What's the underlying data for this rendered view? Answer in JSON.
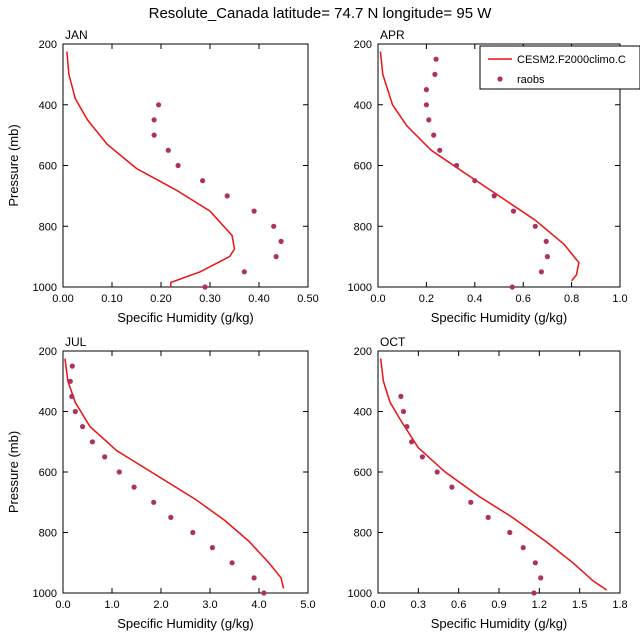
{
  "figure": {
    "title": "Resolute_Canada  latitude= 74.7 N longitude= 95 W"
  },
  "legend": {
    "model_label": "CESM2.F2000climo.C",
    "obs_label": "raobs",
    "model_color": "#ee1111",
    "obs_color": "#b03060",
    "placement": "top-right of APR panel"
  },
  "chart_data": [
    {
      "panel": "JAN",
      "type": "line",
      "xlabel": "Specific Humidity (g/kg)",
      "ylabel": "Pressure (mb)",
      "xlim": [
        0,
        0.5
      ],
      "xticks": [
        "0.00",
        "0.10",
        "0.20",
        "0.30",
        "0.40",
        "0.50"
      ],
      "ylim": [
        1000,
        200
      ],
      "yticks": [
        "200",
        "400",
        "600",
        "800",
        "1000"
      ],
      "series": [
        {
          "name": "CESM2.F2000climo.C",
          "kind": "line",
          "points": [
            [
              0.008,
              225
            ],
            [
              0.012,
              300
            ],
            [
              0.025,
              380
            ],
            [
              0.05,
              450
            ],
            [
              0.09,
              530
            ],
            [
              0.15,
              610
            ],
            [
              0.23,
              680
            ],
            [
              0.3,
              750
            ],
            [
              0.345,
              830
            ],
            [
              0.35,
              875
            ],
            [
              0.34,
              900
            ],
            [
              0.28,
              950
            ],
            [
              0.22,
              985
            ],
            [
              0.22,
              1000
            ]
          ]
        },
        {
          "name": "raobs",
          "kind": "points",
          "points": [
            [
              0.195,
              400
            ],
            [
              0.186,
              450
            ],
            [
              0.186,
              500
            ],
            [
              0.215,
              550
            ],
            [
              0.235,
              600
            ],
            [
              0.285,
              650
            ],
            [
              0.335,
              700
            ],
            [
              0.39,
              750
            ],
            [
              0.43,
              800
            ],
            [
              0.445,
              850
            ],
            [
              0.435,
              900
            ],
            [
              0.37,
              950
            ],
            [
              0.29,
              1000
            ]
          ]
        }
      ]
    },
    {
      "panel": "APR",
      "type": "line",
      "xlabel": "Specific Humidity (g/kg)",
      "ylabel": "",
      "xlim": [
        0,
        1.0
      ],
      "xticks": [
        "0.0",
        "0.2",
        "0.4",
        "0.6",
        "0.8",
        "1.0"
      ],
      "ylim": [
        1000,
        200
      ],
      "yticks": [
        "200",
        "400",
        "600",
        "800",
        "1000"
      ],
      "series": [
        {
          "name": "CESM2.F2000climo.C",
          "kind": "line",
          "points": [
            [
              0.01,
              225
            ],
            [
              0.02,
              300
            ],
            [
              0.06,
              400
            ],
            [
              0.12,
              470
            ],
            [
              0.22,
              550
            ],
            [
              0.35,
              620
            ],
            [
              0.5,
              700
            ],
            [
              0.65,
              780
            ],
            [
              0.77,
              860
            ],
            [
              0.83,
              920
            ],
            [
              0.82,
              960
            ],
            [
              0.8,
              980
            ]
          ]
        },
        {
          "name": "raobs",
          "kind": "points",
          "points": [
            [
              0.24,
              250
            ],
            [
              0.235,
              300
            ],
            [
              0.2,
              350
            ],
            [
              0.2,
              400
            ],
            [
              0.21,
              450
            ],
            [
              0.23,
              500
            ],
            [
              0.255,
              550
            ],
            [
              0.325,
              600
            ],
            [
              0.4,
              650
            ],
            [
              0.48,
              700
            ],
            [
              0.56,
              750
            ],
            [
              0.65,
              800
            ],
            [
              0.695,
              850
            ],
            [
              0.7,
              900
            ],
            [
              0.675,
              950
            ],
            [
              0.555,
              1000
            ]
          ]
        }
      ]
    },
    {
      "panel": "JUL",
      "type": "line",
      "xlabel": "Specific Humidity (g/kg)",
      "ylabel": "Pressure (mb)",
      "xlim": [
        0,
        5.0
      ],
      "xticks": [
        "0.0",
        "1.0",
        "2.0",
        "3.0",
        "4.0",
        "5.0"
      ],
      "ylim": [
        1000,
        200
      ],
      "yticks": [
        "200",
        "400",
        "600",
        "800",
        "1000"
      ],
      "series": [
        {
          "name": "CESM2.F2000climo.C",
          "kind": "line",
          "points": [
            [
              0.04,
              225
            ],
            [
              0.1,
              300
            ],
            [
              0.25,
              370
            ],
            [
              0.55,
              450
            ],
            [
              1.1,
              530
            ],
            [
              1.9,
              610
            ],
            [
              2.7,
              690
            ],
            [
              3.3,
              760
            ],
            [
              3.8,
              830
            ],
            [
              4.2,
              900
            ],
            [
              4.45,
              950
            ],
            [
              4.5,
              985
            ]
          ]
        },
        {
          "name": "raobs",
          "kind": "points",
          "points": [
            [
              0.19,
              250
            ],
            [
              0.15,
              300
            ],
            [
              0.18,
              350
            ],
            [
              0.25,
              400
            ],
            [
              0.4,
              450
            ],
            [
              0.6,
              500
            ],
            [
              0.85,
              550
            ],
            [
              1.15,
              600
            ],
            [
              1.45,
              650
            ],
            [
              1.85,
              700
            ],
            [
              2.2,
              750
            ],
            [
              2.65,
              800
            ],
            [
              3.05,
              850
            ],
            [
              3.45,
              900
            ],
            [
              3.9,
              950
            ],
            [
              4.1,
              1000
            ]
          ]
        }
      ]
    },
    {
      "panel": "OCT",
      "type": "line",
      "xlabel": "Specific Humidity (g/kg)",
      "ylabel": "",
      "xlim": [
        0,
        1.8
      ],
      "xticks": [
        "0.0",
        "0.3",
        "0.6",
        "0.9",
        "1.2",
        "1.5",
        "1.8"
      ],
      "ylim": [
        1000,
        200
      ],
      "yticks": [
        "200",
        "400",
        "600",
        "800",
        "1000"
      ],
      "series": [
        {
          "name": "CESM2.F2000climo.C",
          "kind": "line",
          "points": [
            [
              0.02,
              225
            ],
            [
              0.04,
              300
            ],
            [
              0.09,
              370
            ],
            [
              0.17,
              430
            ],
            [
              0.3,
              520
            ],
            [
              0.5,
              600
            ],
            [
              0.75,
              680
            ],
            [
              1.0,
              750
            ],
            [
              1.25,
              830
            ],
            [
              1.45,
              900
            ],
            [
              1.6,
              960
            ],
            [
              1.7,
              990
            ]
          ]
        },
        {
          "name": "raobs",
          "kind": "points",
          "points": [
            [
              0.17,
              350
            ],
            [
              0.19,
              400
            ],
            [
              0.215,
              450
            ],
            [
              0.25,
              500
            ],
            [
              0.33,
              550
            ],
            [
              0.44,
              600
            ],
            [
              0.55,
              650
            ],
            [
              0.69,
              700
            ],
            [
              0.82,
              750
            ],
            [
              0.98,
              800
            ],
            [
              1.08,
              850
            ],
            [
              1.17,
              900
            ],
            [
              1.21,
              950
            ],
            [
              1.16,
              1000
            ]
          ]
        }
      ]
    }
  ]
}
